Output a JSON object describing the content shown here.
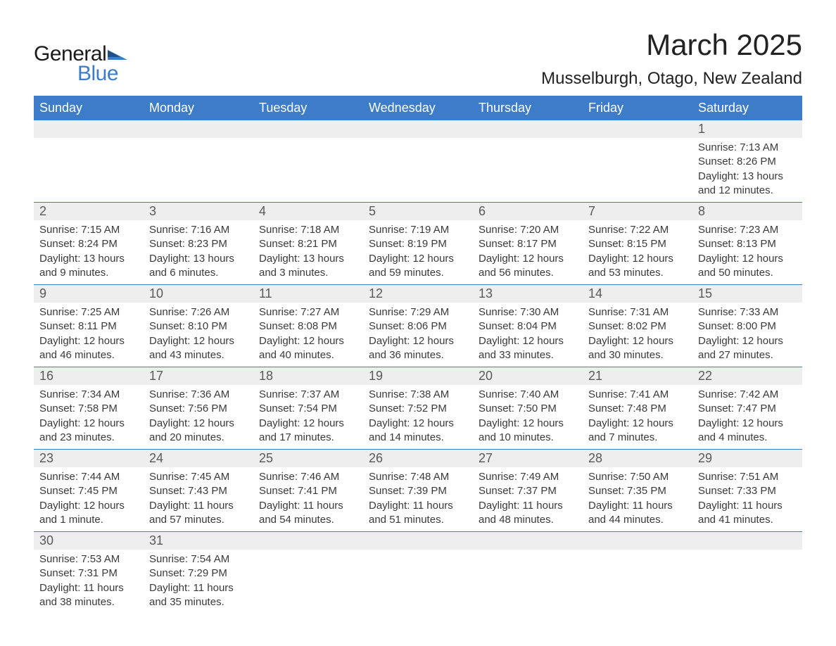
{
  "brand": {
    "line1": "General",
    "line2": "Blue",
    "flag_color": "#3d7cc9"
  },
  "title": {
    "month": "March 2025",
    "location": "Musselburgh, Otago, New Zealand"
  },
  "style": {
    "header_bg": "#3d7cc9",
    "header_fg": "#ffffff",
    "daynum_bg": "#eeeeee",
    "daynum_fg": "#5a5a5a",
    "body_fg": "#3a3a3a",
    "row_divider": "#3d7cc9",
    "page_bg": "#ffffff",
    "title_fontsize": 42,
    "location_fontsize": 24,
    "header_fontsize": 18,
    "daynum_fontsize": 18,
    "detail_fontsize": 15
  },
  "weekdays": [
    "Sunday",
    "Monday",
    "Tuesday",
    "Wednesday",
    "Thursday",
    "Friday",
    "Saturday"
  ],
  "weeks": [
    [
      {
        "num": "",
        "sunrise": "",
        "sunset": "",
        "daylight": ""
      },
      {
        "num": "",
        "sunrise": "",
        "sunset": "",
        "daylight": ""
      },
      {
        "num": "",
        "sunrise": "",
        "sunset": "",
        "daylight": ""
      },
      {
        "num": "",
        "sunrise": "",
        "sunset": "",
        "daylight": ""
      },
      {
        "num": "",
        "sunrise": "",
        "sunset": "",
        "daylight": ""
      },
      {
        "num": "",
        "sunrise": "",
        "sunset": "",
        "daylight": ""
      },
      {
        "num": "1",
        "sunrise": "Sunrise: 7:13 AM",
        "sunset": "Sunset: 8:26 PM",
        "daylight": "Daylight: 13 hours and 12 minutes."
      }
    ],
    [
      {
        "num": "2",
        "sunrise": "Sunrise: 7:15 AM",
        "sunset": "Sunset: 8:24 PM",
        "daylight": "Daylight: 13 hours and 9 minutes."
      },
      {
        "num": "3",
        "sunrise": "Sunrise: 7:16 AM",
        "sunset": "Sunset: 8:23 PM",
        "daylight": "Daylight: 13 hours and 6 minutes."
      },
      {
        "num": "4",
        "sunrise": "Sunrise: 7:18 AM",
        "sunset": "Sunset: 8:21 PM",
        "daylight": "Daylight: 13 hours and 3 minutes."
      },
      {
        "num": "5",
        "sunrise": "Sunrise: 7:19 AM",
        "sunset": "Sunset: 8:19 PM",
        "daylight": "Daylight: 12 hours and 59 minutes."
      },
      {
        "num": "6",
        "sunrise": "Sunrise: 7:20 AM",
        "sunset": "Sunset: 8:17 PM",
        "daylight": "Daylight: 12 hours and 56 minutes."
      },
      {
        "num": "7",
        "sunrise": "Sunrise: 7:22 AM",
        "sunset": "Sunset: 8:15 PM",
        "daylight": "Daylight: 12 hours and 53 minutes."
      },
      {
        "num": "8",
        "sunrise": "Sunrise: 7:23 AM",
        "sunset": "Sunset: 8:13 PM",
        "daylight": "Daylight: 12 hours and 50 minutes."
      }
    ],
    [
      {
        "num": "9",
        "sunrise": "Sunrise: 7:25 AM",
        "sunset": "Sunset: 8:11 PM",
        "daylight": "Daylight: 12 hours and 46 minutes."
      },
      {
        "num": "10",
        "sunrise": "Sunrise: 7:26 AM",
        "sunset": "Sunset: 8:10 PM",
        "daylight": "Daylight: 12 hours and 43 minutes."
      },
      {
        "num": "11",
        "sunrise": "Sunrise: 7:27 AM",
        "sunset": "Sunset: 8:08 PM",
        "daylight": "Daylight: 12 hours and 40 minutes."
      },
      {
        "num": "12",
        "sunrise": "Sunrise: 7:29 AM",
        "sunset": "Sunset: 8:06 PM",
        "daylight": "Daylight: 12 hours and 36 minutes."
      },
      {
        "num": "13",
        "sunrise": "Sunrise: 7:30 AM",
        "sunset": "Sunset: 8:04 PM",
        "daylight": "Daylight: 12 hours and 33 minutes."
      },
      {
        "num": "14",
        "sunrise": "Sunrise: 7:31 AM",
        "sunset": "Sunset: 8:02 PM",
        "daylight": "Daylight: 12 hours and 30 minutes."
      },
      {
        "num": "15",
        "sunrise": "Sunrise: 7:33 AM",
        "sunset": "Sunset: 8:00 PM",
        "daylight": "Daylight: 12 hours and 27 minutes."
      }
    ],
    [
      {
        "num": "16",
        "sunrise": "Sunrise: 7:34 AM",
        "sunset": "Sunset: 7:58 PM",
        "daylight": "Daylight: 12 hours and 23 minutes."
      },
      {
        "num": "17",
        "sunrise": "Sunrise: 7:36 AM",
        "sunset": "Sunset: 7:56 PM",
        "daylight": "Daylight: 12 hours and 20 minutes."
      },
      {
        "num": "18",
        "sunrise": "Sunrise: 7:37 AM",
        "sunset": "Sunset: 7:54 PM",
        "daylight": "Daylight: 12 hours and 17 minutes."
      },
      {
        "num": "19",
        "sunrise": "Sunrise: 7:38 AM",
        "sunset": "Sunset: 7:52 PM",
        "daylight": "Daylight: 12 hours and 14 minutes."
      },
      {
        "num": "20",
        "sunrise": "Sunrise: 7:40 AM",
        "sunset": "Sunset: 7:50 PM",
        "daylight": "Daylight: 12 hours and 10 minutes."
      },
      {
        "num": "21",
        "sunrise": "Sunrise: 7:41 AM",
        "sunset": "Sunset: 7:48 PM",
        "daylight": "Daylight: 12 hours and 7 minutes."
      },
      {
        "num": "22",
        "sunrise": "Sunrise: 7:42 AM",
        "sunset": "Sunset: 7:47 PM",
        "daylight": "Daylight: 12 hours and 4 minutes."
      }
    ],
    [
      {
        "num": "23",
        "sunrise": "Sunrise: 7:44 AM",
        "sunset": "Sunset: 7:45 PM",
        "daylight": "Daylight: 12 hours and 1 minute."
      },
      {
        "num": "24",
        "sunrise": "Sunrise: 7:45 AM",
        "sunset": "Sunset: 7:43 PM",
        "daylight": "Daylight: 11 hours and 57 minutes."
      },
      {
        "num": "25",
        "sunrise": "Sunrise: 7:46 AM",
        "sunset": "Sunset: 7:41 PM",
        "daylight": "Daylight: 11 hours and 54 minutes."
      },
      {
        "num": "26",
        "sunrise": "Sunrise: 7:48 AM",
        "sunset": "Sunset: 7:39 PM",
        "daylight": "Daylight: 11 hours and 51 minutes."
      },
      {
        "num": "27",
        "sunrise": "Sunrise: 7:49 AM",
        "sunset": "Sunset: 7:37 PM",
        "daylight": "Daylight: 11 hours and 48 minutes."
      },
      {
        "num": "28",
        "sunrise": "Sunrise: 7:50 AM",
        "sunset": "Sunset: 7:35 PM",
        "daylight": "Daylight: 11 hours and 44 minutes."
      },
      {
        "num": "29",
        "sunrise": "Sunrise: 7:51 AM",
        "sunset": "Sunset: 7:33 PM",
        "daylight": "Daylight: 11 hours and 41 minutes."
      }
    ],
    [
      {
        "num": "30",
        "sunrise": "Sunrise: 7:53 AM",
        "sunset": "Sunset: 7:31 PM",
        "daylight": "Daylight: 11 hours and 38 minutes."
      },
      {
        "num": "31",
        "sunrise": "Sunrise: 7:54 AM",
        "sunset": "Sunset: 7:29 PM",
        "daylight": "Daylight: 11 hours and 35 minutes."
      },
      {
        "num": "",
        "sunrise": "",
        "sunset": "",
        "daylight": ""
      },
      {
        "num": "",
        "sunrise": "",
        "sunset": "",
        "daylight": ""
      },
      {
        "num": "",
        "sunrise": "",
        "sunset": "",
        "daylight": ""
      },
      {
        "num": "",
        "sunrise": "",
        "sunset": "",
        "daylight": ""
      },
      {
        "num": "",
        "sunrise": "",
        "sunset": "",
        "daylight": ""
      }
    ]
  ]
}
